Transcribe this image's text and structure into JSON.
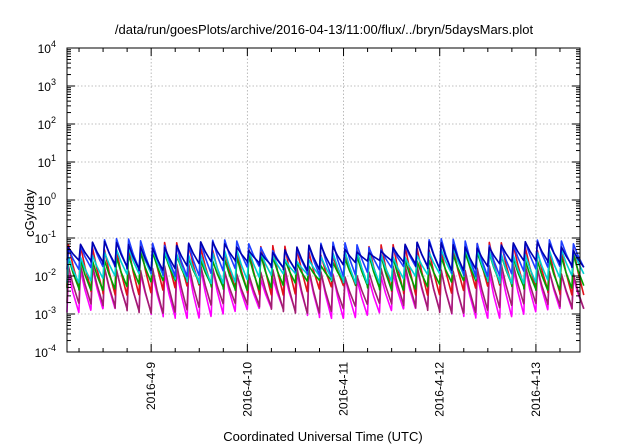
{
  "chart_data": {
    "type": "line",
    "title": "/data/run/goesPlots/archive/2016-04-13/11:00/flux/../bryn/5daysMars.plot",
    "xlabel": "Coordinated Universal Time (UTC)",
    "ylabel": "cGy/day",
    "yscale": "log",
    "ylim": [
      0.0001,
      10000
    ],
    "xlim": [
      "2016-04-08T03:00",
      "2016-04-13T11:00"
    ],
    "grid": true,
    "y_ticks": [
      {
        "base": "10",
        "exp": "-4"
      },
      {
        "base": "10",
        "exp": "-3"
      },
      {
        "base": "10",
        "exp": "-2"
      },
      {
        "base": "10",
        "exp": "-1"
      },
      {
        "base": "10",
        "exp": "0"
      },
      {
        "base": "10",
        "exp": "1"
      },
      {
        "base": "10",
        "exp": "2"
      },
      {
        "base": "10",
        "exp": "3"
      },
      {
        "base": "10",
        "exp": "4"
      }
    ],
    "x_ticks": [
      "2016-4-9",
      "2016-4-10",
      "2016-4-11",
      "2016-4-12",
      "2016-4-13"
    ],
    "series": [
      {
        "color": "#ff00ff",
        "peak": 0.012,
        "trough": 0.0011
      },
      {
        "color": "#a0206e",
        "peak": 0.015,
        "trough": 0.0015
      },
      {
        "color": "#e0101c",
        "peak": 0.055,
        "trough": 0.0045
      },
      {
        "color": "#00a000",
        "peak": 0.03,
        "trough": 0.006
      },
      {
        "color": "#00d0d0",
        "peak": 0.04,
        "trough": 0.009
      },
      {
        "color": "#2040ff",
        "peak": 0.07,
        "trough": 0.014
      },
      {
        "color": "#0000b0",
        "peak": 0.06,
        "trough": 0.02
      }
    ],
    "pattern": {
      "cycle_hours": 3,
      "notes": "Sawtooth: sharp rise to peak at each cycle start, decay to trough before next cycle."
    }
  }
}
